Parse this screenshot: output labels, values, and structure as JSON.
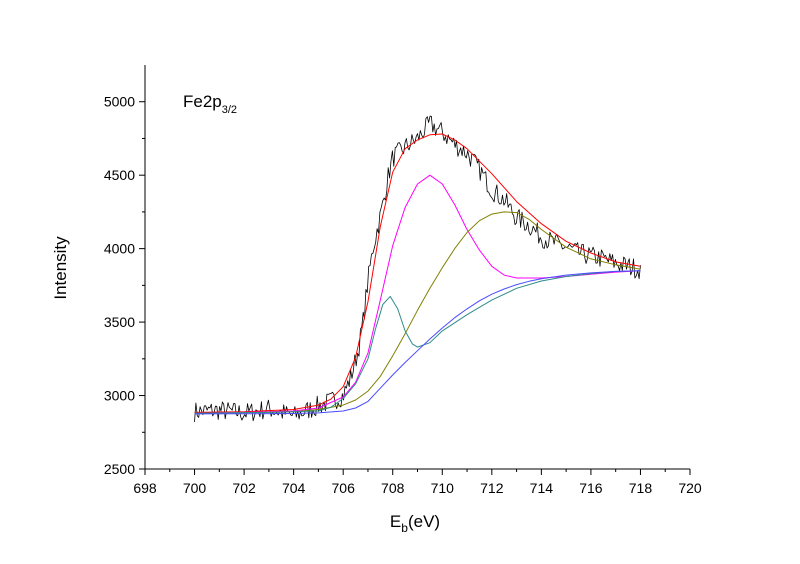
{
  "chart_data": {
    "type": "line",
    "title": "",
    "annotation": {
      "main": "Fe2p",
      "subscript": "3/2"
    },
    "xlabel": {
      "main": "E",
      "subscript": "b",
      "suffix": "(eV)"
    },
    "ylabel": "Intensity",
    "xlim": [
      698,
      720
    ],
    "ylim": [
      2500,
      5250
    ],
    "x_ticks": [
      698,
      700,
      702,
      704,
      706,
      708,
      710,
      712,
      714,
      716,
      718,
      720
    ],
    "y_ticks": [
      2500,
      3000,
      3500,
      4000,
      4500,
      5000
    ],
    "grid": false,
    "legend": "none",
    "series": [
      {
        "color": "#000000",
        "kind": "noisy-data",
        "x": [
          700,
          701,
          702,
          703,
          704,
          705,
          705.5,
          706,
          706.3,
          706.6,
          706.8,
          707,
          707.2,
          707.4,
          707.6,
          707.8,
          708,
          708.5,
          709,
          709.5,
          710,
          710.5,
          711,
          711.5,
          712,
          712.5,
          713,
          713.5,
          714,
          714.5,
          715,
          715.5,
          716,
          716.5,
          717,
          717.5,
          718
        ],
        "y": [
          2890,
          2900,
          2880,
          2910,
          2860,
          2930,
          2960,
          3000,
          3120,
          3300,
          3500,
          3780,
          4000,
          4150,
          4300,
          4480,
          4620,
          4690,
          4750,
          4850,
          4790,
          4710,
          4650,
          4540,
          4400,
          4330,
          4210,
          4160,
          4080,
          4040,
          4010,
          3970,
          3950,
          3930,
          3900,
          3880,
          3860
        ]
      },
      {
        "color": "#ff0000",
        "kind": "fit-envelope",
        "x": [
          700,
          702,
          704,
          705,
          705.5,
          706,
          706.5,
          707,
          707.5,
          708,
          708.5,
          709,
          709.5,
          710,
          710.5,
          711,
          712,
          713,
          714,
          715,
          716,
          717,
          718
        ],
        "y": [
          2885,
          2890,
          2905,
          2935,
          2975,
          3060,
          3260,
          3640,
          4150,
          4520,
          4680,
          4740,
          4775,
          4780,
          4740,
          4680,
          4510,
          4320,
          4170,
          4050,
          3970,
          3910,
          3880
        ]
      },
      {
        "color": "#ff00ff",
        "kind": "component",
        "x": [
          700,
          702,
          704,
          705,
          706,
          706.5,
          707,
          707.5,
          708,
          708.5,
          709,
          709.5,
          710,
          710.5,
          711,
          711.5,
          712,
          712.5,
          713,
          714,
          715,
          716,
          717,
          718
        ],
        "y": [
          2880,
          2885,
          2895,
          2915,
          2990,
          3090,
          3290,
          3650,
          4020,
          4280,
          4440,
          4500,
          4440,
          4300,
          4130,
          3990,
          3880,
          3820,
          3800,
          3800,
          3810,
          3825,
          3840,
          3850
        ]
      },
      {
        "color": "#808000",
        "kind": "component",
        "x": [
          700,
          702,
          704,
          705,
          706,
          706.5,
          707,
          707.5,
          708,
          708.5,
          709,
          709.5,
          710,
          710.5,
          711,
          711.5,
          712,
          712.5,
          713,
          713.5,
          714,
          715,
          716,
          717,
          718
        ],
        "y": [
          2880,
          2883,
          2890,
          2905,
          2935,
          2970,
          3030,
          3130,
          3270,
          3420,
          3580,
          3730,
          3870,
          4000,
          4110,
          4190,
          4235,
          4250,
          4245,
          4200,
          4130,
          4010,
          3930,
          3890,
          3860
        ]
      },
      {
        "color": "#2e8b8b",
        "kind": "component",
        "x": [
          700,
          703,
          705,
          705.5,
          706,
          706.5,
          707,
          707.3,
          707.6,
          707.9,
          708.2,
          708.5,
          708.8,
          709,
          709.5,
          710,
          711,
          712,
          713,
          714,
          715,
          716,
          717,
          718
        ],
        "y": [
          2880,
          2885,
          2895,
          2920,
          2980,
          3080,
          3250,
          3450,
          3620,
          3675,
          3590,
          3440,
          3350,
          3330,
          3360,
          3440,
          3550,
          3650,
          3730,
          3780,
          3810,
          3830,
          3845,
          3850
        ]
      },
      {
        "color": "#4b4bff",
        "kind": "background",
        "x": [
          700,
          702,
          704,
          705,
          706,
          706.5,
          707,
          707.5,
          708,
          708.5,
          709,
          709.5,
          710,
          710.5,
          711,
          711.5,
          712,
          712.5,
          713,
          713.5,
          714,
          715,
          716,
          717,
          718
        ],
        "y": [
          2875,
          2876,
          2878,
          2882,
          2895,
          2915,
          2960,
          3050,
          3140,
          3225,
          3305,
          3385,
          3460,
          3530,
          3590,
          3645,
          3690,
          3725,
          3755,
          3778,
          3795,
          3820,
          3835,
          3845,
          3850
        ]
      }
    ]
  }
}
